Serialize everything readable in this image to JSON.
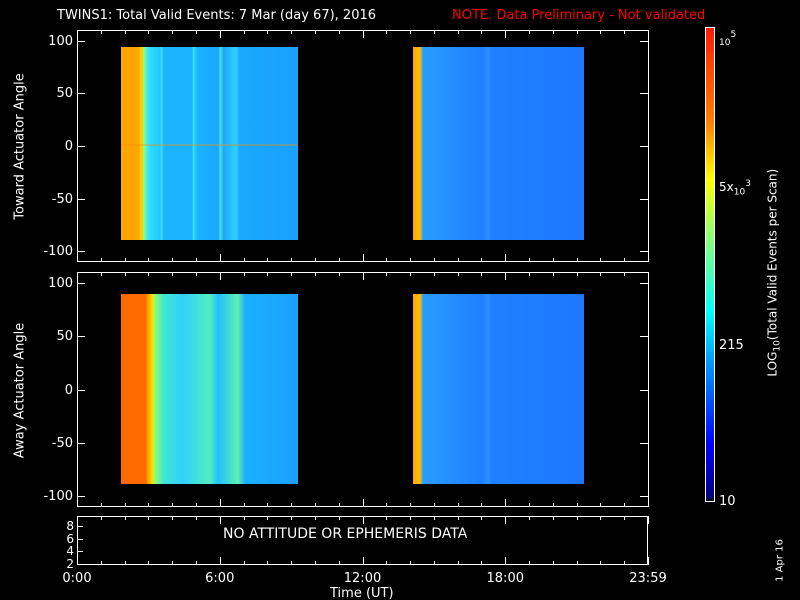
{
  "title": {
    "main": "TWINS1: Total Valid Events:  7 Mar (day  67), 2016",
    "note": "NOTE. Data Preliminary - Not validated",
    "note_color": "#ff0000"
  },
  "chart_data": [
    {
      "type": "heatmap",
      "ylabel": "Toward Actuator Angle",
      "ylim": [
        -110,
        110
      ],
      "yticks": [
        "100",
        "50",
        "0",
        "-50",
        "-100"
      ],
      "data_coverage_hours": [
        [
          1.8,
          9.2
        ],
        [
          14.2,
          21.3
        ]
      ],
      "angle_range": [
        -90,
        90
      ]
    },
    {
      "type": "heatmap",
      "ylabel": "Away Actuator Angle",
      "ylim": [
        -110,
        110
      ],
      "yticks": [
        "100",
        "50",
        "0",
        "-50",
        "-100"
      ],
      "data_coverage_hours": [
        [
          1.8,
          9.2
        ],
        [
          14.2,
          21.3
        ]
      ],
      "angle_range": [
        -90,
        90
      ]
    },
    {
      "type": "line",
      "yticks": [
        "8",
        "6",
        "4",
        "2"
      ],
      "annotation": "NO ATTITUDE OR EPHEMERIS DATA"
    }
  ],
  "xaxis": {
    "label": "Time (UT)",
    "ticks": [
      "0:00",
      "6:00",
      "12:00",
      "18:00",
      "23:59"
    ]
  },
  "colorbar": {
    "label_prefix": "LOG",
    "label_sub": "10",
    "label_rest": "(Total Valid Events per Scan)",
    "ticks": [
      {
        "base": "10",
        "exp": "5",
        "pre": ""
      },
      {
        "pre": "5x",
        "base": "10",
        "exp": "3"
      }
    ],
    "tick_215": "215",
    "tick_10": "10",
    "range": [
      10,
      100000
    ]
  },
  "footer_date": "1 Apr 16"
}
